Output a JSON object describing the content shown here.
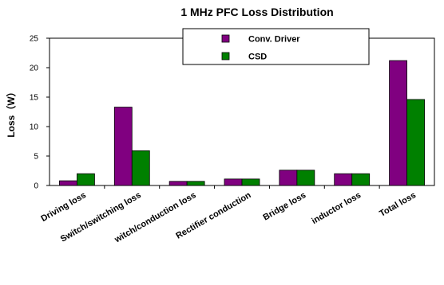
{
  "chart_data": {
    "type": "bar",
    "title": "1 MHz PFC Loss Distribution",
    "xlabel": "",
    "ylabel": "Loss（W）",
    "ylim": [
      0,
      25
    ],
    "yticks": [
      0,
      5,
      10,
      15,
      20,
      25
    ],
    "grid": false,
    "legend_position": "top-center",
    "categories": [
      "Driving loss",
      "Switch/switching loss",
      "witch/conduction loss",
      "Rectifier conduction",
      "Bridge loss",
      "inductor loss",
      "Total loss"
    ],
    "series": [
      {
        "name": "Conv. Driver",
        "color": "#800080",
        "values": [
          0.8,
          13.3,
          0.7,
          1.1,
          2.6,
          2.0,
          21.2
        ]
      },
      {
        "name": "CSD",
        "color": "#008000",
        "values": [
          2.0,
          5.9,
          0.7,
          1.1,
          2.6,
          2.0,
          14.6
        ]
      }
    ]
  }
}
